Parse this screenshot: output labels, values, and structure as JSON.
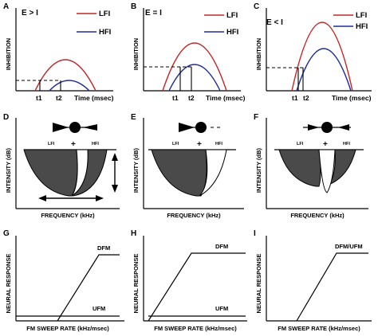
{
  "colors": {
    "lfi": "#c0282a",
    "hfi": "#1f2d9e",
    "ink": "#000000",
    "dark_fill": "#4a4a4a"
  },
  "row1": {
    "y_label": "INHIBITION",
    "x_label": "Time (msec)",
    "legend": {
      "lfi": "LFI",
      "hfi": "HFI"
    },
    "panels": [
      {
        "letter": "A",
        "condition": "E > I",
        "t1": "t1",
        "t2": "t2"
      },
      {
        "letter": "B",
        "condition": "E = I",
        "t1": "t1",
        "t2": "t2"
      },
      {
        "letter": "C",
        "condition": "E < I",
        "t1": "t1",
        "t2": "t2"
      }
    ]
  },
  "row2": {
    "y_label": "INTENSITY (dB)",
    "x_label": "FREQUENCY (kHz)",
    "lfi_label": "LFI",
    "hfi_label": "HFI",
    "plus": "+",
    "panels": [
      {
        "letter": "D"
      },
      {
        "letter": "E"
      },
      {
        "letter": "F"
      }
    ]
  },
  "row3": {
    "y_label": "NEURAL RESPONSE",
    "x_label": "FM SWEEP RATE  (kHz/msec)",
    "panels": [
      {
        "letter": "G",
        "labels": [
          "DFM",
          "UFM"
        ]
      },
      {
        "letter": "H",
        "labels": [
          "DFM",
          "UFM"
        ]
      },
      {
        "letter": "I",
        "labels": [
          "DFM/UFM"
        ]
      }
    ]
  }
}
